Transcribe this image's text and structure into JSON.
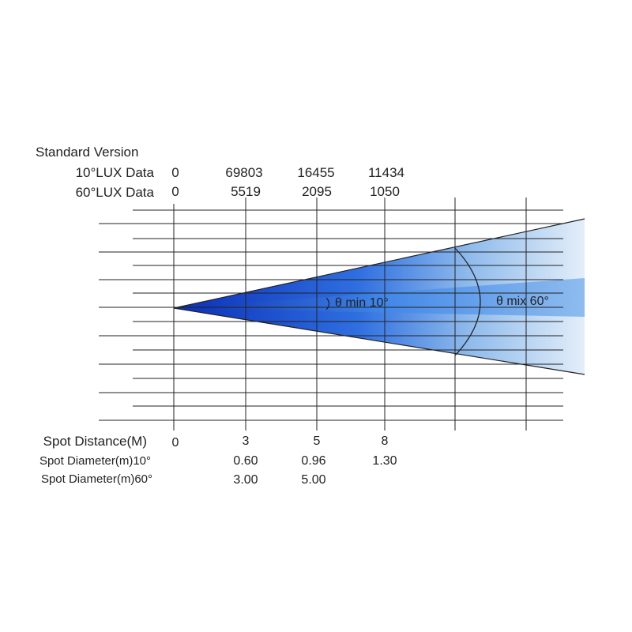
{
  "title": "Standard Version",
  "lux_rows": [
    {
      "label": "10°LUX Data",
      "values": [
        "0",
        "69803",
        "16455",
        "11434"
      ]
    },
    {
      "label": "60°LUX Data",
      "values": [
        "0",
        "5519",
        "2095",
        "1050"
      ]
    }
  ],
  "beam_labels": {
    "min": "θ min 10°",
    "max": "θ mix 60°"
  },
  "distance": {
    "label": "Spot Distance(M)",
    "values": [
      "0",
      "3",
      "5",
      "8"
    ]
  },
  "diameter_rows": [
    {
      "label": "Spot Diameter(m)10°",
      "values": [
        "",
        "0.60",
        "0.96",
        "1.30"
      ]
    },
    {
      "label": "Spot Diameter(m)60°",
      "values": [
        "",
        "3.00",
        "5.00",
        ""
      ]
    }
  ],
  "colors": {
    "beam_core": "#1f4fd8",
    "beam_edge": "#cfe2f6",
    "grid": "#222222"
  }
}
